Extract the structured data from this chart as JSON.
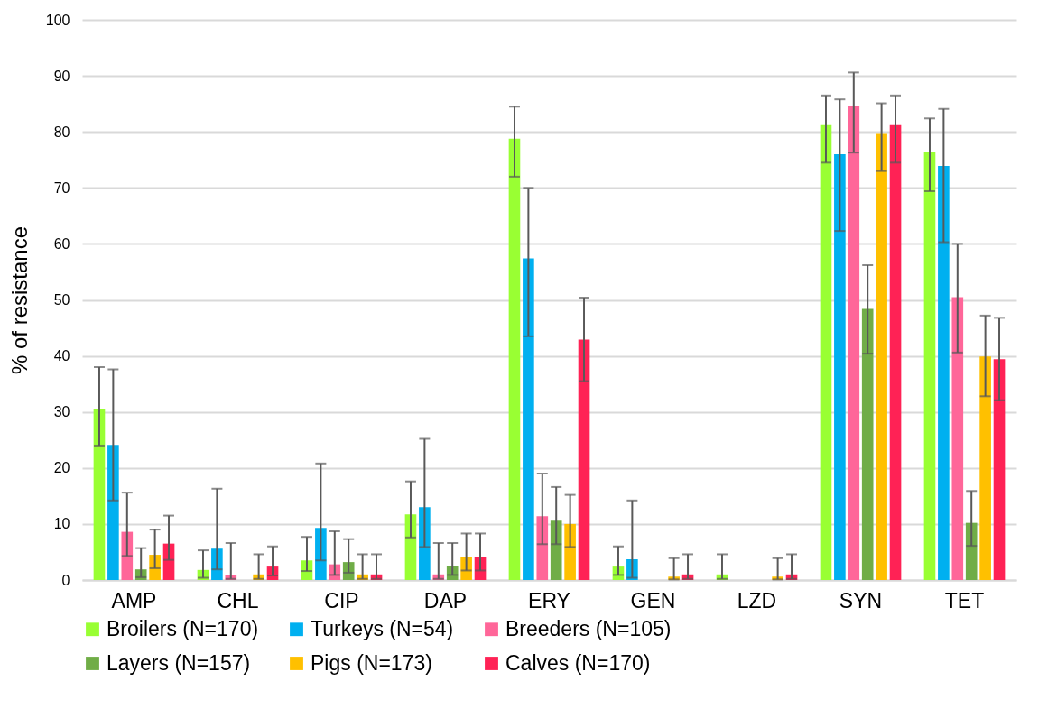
{
  "chart_data": {
    "type": "bar",
    "ylabel": "% of resistance",
    "categories": [
      "AMP",
      "CHL",
      "CIP",
      "DAP",
      "ERY",
      "GEN",
      "LZD",
      "SYN",
      "TET"
    ],
    "ylim": [
      0,
      100
    ],
    "yticks": [
      0,
      10,
      20,
      30,
      40,
      50,
      60,
      70,
      80,
      90,
      100
    ],
    "grid": "y",
    "legend": "bottom",
    "series": [
      {
        "name": "Broilers (N=170)",
        "color": "#99ff33",
        "values": [
          30.6,
          1.8,
          3.5,
          11.7,
          78.8,
          2.4,
          1.0,
          81.2,
          76.4
        ],
        "errors": [
          [
            24,
            38
          ],
          [
            0.4,
            5.3
          ],
          [
            1.6,
            7.7
          ],
          [
            7.6,
            17.6
          ],
          [
            72,
            84.5
          ],
          [
            0.9,
            6.0
          ],
          [
            0.2,
            4.6
          ],
          [
            74.5,
            86.5
          ],
          [
            69.4,
            82.4
          ]
        ]
      },
      {
        "name": "Turkeys (N=54)",
        "color": "#00b0f0",
        "values": [
          24.1,
          5.6,
          9.3,
          13.0,
          57.4,
          3.7,
          null,
          76.0,
          73.9
        ],
        "errors": [
          [
            14.2,
            37.6
          ],
          [
            1.9,
            16.3
          ],
          [
            3.5,
            20.8
          ],
          [
            5.9,
            25.2
          ],
          [
            43.5,
            70
          ],
          [
            0.4,
            14.2
          ],
          null,
          [
            62.3,
            85.8
          ],
          [
            60.3,
            84.1
          ]
        ]
      },
      {
        "name": "Breeders (N=105)",
        "color": "#ff6699",
        "values": [
          8.6,
          0.9,
          2.8,
          1.0,
          11.4,
          null,
          null,
          84.7,
          50.5
        ],
        "errors": [
          [
            4.3,
            15.6
          ],
          [
            0.2,
            6.6
          ],
          [
            0.9,
            8.7
          ],
          [
            0.2,
            6.6
          ],
          [
            6.4,
            19
          ],
          null,
          null,
          [
            76.3,
            90.6
          ],
          [
            40.6,
            60
          ]
        ]
      },
      {
        "name": "Layers (N=157)",
        "color": "#70ad47",
        "values": [
          1.9,
          null,
          3.2,
          2.5,
          10.6,
          null,
          null,
          48.4,
          10.2
        ],
        "errors": [
          [
            0.5,
            5.7
          ],
          null,
          [
            1.3,
            7.3
          ],
          [
            0.9,
            6.6
          ],
          [
            6.4,
            16.6
          ],
          null,
          null,
          [
            40.4,
            56.2
          ],
          [
            6.1,
            15.9
          ]
        ]
      },
      {
        "name": "Pigs (N=173)",
        "color": "#ffc000",
        "values": [
          4.5,
          1.0,
          1.0,
          4.1,
          10.0,
          0.6,
          0.6,
          79.8,
          39.9
        ],
        "errors": [
          [
            2.1,
            9
          ],
          [
            0.2,
            4.6
          ],
          [
            0.2,
            4.6
          ],
          [
            1.7,
            8.3
          ],
          [
            5.9,
            15.2
          ],
          [
            0.1,
            3.9
          ],
          [
            0.1,
            3.9
          ],
          [
            73,
            85.1
          ],
          [
            32.8,
            47.2
          ]
        ]
      },
      {
        "name": "Calves (N=170)",
        "color": "#ff2255",
        "values": [
          6.5,
          2.4,
          1.0,
          4.1,
          42.9,
          1.0,
          1.0,
          81.2,
          39.4
        ],
        "errors": [
          [
            3.6,
            11.5
          ],
          [
            0.8,
            6.0
          ],
          [
            0.2,
            4.6
          ],
          [
            1.7,
            8.3
          ],
          [
            35.5,
            50.4
          ],
          [
            0.2,
            4.6
          ],
          [
            0.2,
            4.6
          ],
          [
            74.5,
            86.5
          ],
          [
            32.1,
            46.8
          ]
        ]
      }
    ]
  }
}
